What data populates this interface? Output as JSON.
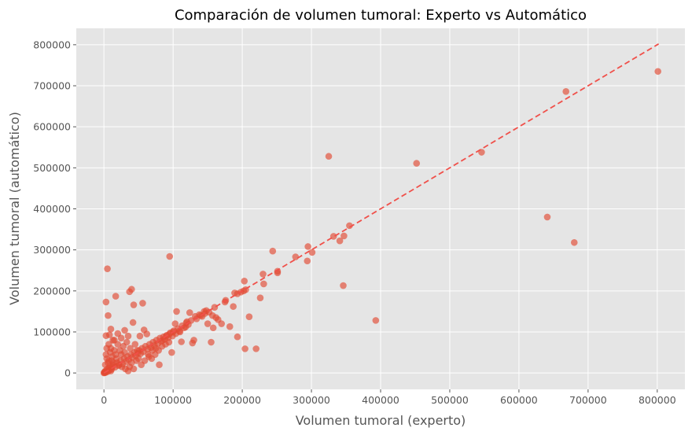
{
  "chart_data": {
    "type": "scatter",
    "title": "Comparación de volumen tumoral: Experto vs Automático",
    "xlabel": "Volumen tumoral (experto)",
    "ylabel": "Volumen tumoral (automático)",
    "xlim": [
      -40000,
      840000
    ],
    "ylim": [
      -40000,
      840000
    ],
    "x_ticks": [
      0,
      100000,
      200000,
      300000,
      400000,
      500000,
      600000,
      700000,
      800000
    ],
    "y_ticks": [
      0,
      100000,
      200000,
      300000,
      400000,
      500000,
      600000,
      700000,
      800000
    ],
    "x_tick_labels": [
      "0",
      "100000",
      "200000",
      "300000",
      "400000",
      "500000",
      "600000",
      "700000",
      "800000"
    ],
    "y_tick_labels": [
      "0",
      "100000",
      "200000",
      "300000",
      "400000",
      "500000",
      "600000",
      "700000",
      "800000"
    ],
    "grid": true,
    "style": "ggplot",
    "colors": {
      "points": "#e24a33",
      "reference_line": "#f0504a",
      "background": "#e5e5e5",
      "grid": "#ffffff"
    },
    "reference_line": {
      "from": [
        0,
        0
      ],
      "to": [
        802000,
        802000
      ],
      "style": "dashed"
    },
    "series": [
      {
        "points": [
          [
            801000,
            735000
          ],
          [
            668000,
            686000
          ],
          [
            546000,
            538000
          ],
          [
            452000,
            511000
          ],
          [
            325000,
            528000
          ],
          [
            641000,
            380000
          ],
          [
            680000,
            318000
          ],
          [
            393000,
            128000
          ],
          [
            355000,
            359000
          ],
          [
            347000,
            334000
          ],
          [
            332000,
            333000
          ],
          [
            341000,
            322000
          ],
          [
            346000,
            213000
          ],
          [
            295000,
            308000
          ],
          [
            301000,
            294000
          ],
          [
            294000,
            273000
          ],
          [
            277000,
            283000
          ],
          [
            244000,
            297000
          ],
          [
            251000,
            248000
          ],
          [
            251000,
            244000
          ],
          [
            230000,
            241000
          ],
          [
            231000,
            217000
          ],
          [
            226000,
            183000
          ],
          [
            210000,
            137000
          ],
          [
            205000,
            203000
          ],
          [
            202000,
            200000
          ],
          [
            203000,
            224000
          ],
          [
            198000,
            197000
          ],
          [
            193000,
            193000
          ],
          [
            189000,
            195000
          ],
          [
            187000,
            162000
          ],
          [
            176000,
            177000
          ],
          [
            175000,
            173000
          ],
          [
            182000,
            113000
          ],
          [
            193000,
            88000
          ],
          [
            204000,
            59000
          ],
          [
            220000,
            59000
          ],
          [
            95000,
            284000
          ],
          [
            5000,
            254000
          ],
          [
            3000,
            173000
          ],
          [
            17000,
            187000
          ],
          [
            37000,
            198000
          ],
          [
            40000,
            204000
          ],
          [
            43000,
            166000
          ],
          [
            56000,
            170000
          ],
          [
            6000,
            140000
          ],
          [
            42000,
            123000
          ],
          [
            10000,
            107000
          ],
          [
            20000,
            96000
          ],
          [
            3000,
            91000
          ],
          [
            8000,
            93000
          ],
          [
            15000,
            80000
          ],
          [
            30000,
            104000
          ],
          [
            35000,
            90000
          ],
          [
            48000,
            55000
          ],
          [
            65000,
            40000
          ],
          [
            70000,
            55000
          ],
          [
            62000,
            95000
          ],
          [
            75000,
            60000
          ],
          [
            85000,
            80000
          ],
          [
            90000,
            90000
          ],
          [
            95000,
            95000
          ],
          [
            100000,
            100000
          ],
          [
            103000,
            120000
          ],
          [
            105000,
            150000
          ],
          [
            110000,
            100000
          ],
          [
            112000,
            76000
          ],
          [
            120000,
            125000
          ],
          [
            124000,
            147000
          ],
          [
            130000,
            80000
          ],
          [
            128000,
            73000
          ],
          [
            132000,
            138000
          ],
          [
            140000,
            140000
          ],
          [
            145000,
            150000
          ],
          [
            150000,
            120000
          ],
          [
            155000,
            75000
          ],
          [
            160000,
            160000
          ],
          [
            165000,
            130000
          ],
          [
            170000,
            120000
          ],
          [
            158000,
            110000
          ],
          [
            118000,
            112000
          ],
          [
            98000,
            50000
          ],
          [
            80000,
            20000
          ],
          [
            58000,
            105000
          ],
          [
            52000,
            90000
          ],
          [
            45000,
            70000
          ],
          [
            38000,
            60000
          ],
          [
            30000,
            50000
          ],
          [
            25000,
            45000
          ],
          [
            22000,
            20000
          ],
          [
            18000,
            35000
          ],
          [
            14000,
            25000
          ],
          [
            12000,
            15000
          ],
          [
            9000,
            8000
          ],
          [
            7000,
            30000
          ],
          [
            5000,
            10000
          ],
          [
            4000,
            60000
          ],
          [
            3000,
            45000
          ],
          [
            2000,
            5000
          ],
          [
            1000,
            2000
          ],
          [
            0,
            0
          ],
          [
            500,
            1000
          ],
          [
            1500,
            500
          ],
          [
            2500,
            3500
          ],
          [
            3500,
            2000
          ],
          [
            6000,
            4000
          ],
          [
            8000,
            12000
          ],
          [
            11000,
            9000
          ],
          [
            13000,
            20000
          ],
          [
            16000,
            14000
          ],
          [
            19000,
            25000
          ],
          [
            21000,
            18000
          ],
          [
            24000,
            30000
          ],
          [
            27000,
            22000
          ],
          [
            29000,
            35000
          ],
          [
            32000,
            28000
          ],
          [
            34000,
            40000
          ],
          [
            36000,
            32000
          ],
          [
            39000,
            45000
          ],
          [
            41000,
            38000
          ],
          [
            44000,
            50000
          ],
          [
            46000,
            42000
          ],
          [
            49000,
            48000
          ],
          [
            51000,
            55000
          ],
          [
            53000,
            47000
          ],
          [
            55000,
            60000
          ],
          [
            57000,
            52000
          ],
          [
            60000,
            65000
          ],
          [
            63000,
            58000
          ],
          [
            66000,
            70000
          ],
          [
            68000,
            62000
          ],
          [
            71000,
            75000
          ],
          [
            73000,
            67000
          ],
          [
            76000,
            80000
          ],
          [
            78000,
            72000
          ],
          [
            81000,
            85000
          ],
          [
            83000,
            77000
          ],
          [
            86000,
            88000
          ],
          [
            88000,
            82000
          ],
          [
            91000,
            92000
          ],
          [
            93000,
            86000
          ],
          [
            96000,
            98000
          ],
          [
            99000,
            90000
          ],
          [
            101000,
            103000
          ],
          [
            104000,
            96000
          ],
          [
            107000,
            108000
          ],
          [
            109000,
            102000
          ],
          [
            113000,
            115000
          ],
          [
            116000,
            110000
          ],
          [
            119000,
            122000
          ],
          [
            122000,
            118000
          ],
          [
            126000,
            128000
          ],
          [
            134000,
            132000
          ],
          [
            138000,
            142000
          ],
          [
            142000,
            138000
          ],
          [
            146000,
            145000
          ],
          [
            148000,
            152000
          ],
          [
            152000,
            148000
          ],
          [
            157000,
            140000
          ],
          [
            162000,
            135000
          ],
          [
            10000,
            60000
          ],
          [
            12000,
            40000
          ],
          [
            15000,
            55000
          ],
          [
            20000,
            70000
          ],
          [
            25000,
            85000
          ],
          [
            28000,
            65000
          ],
          [
            33000,
            75000
          ],
          [
            37000,
            15000
          ],
          [
            40000,
            25000
          ],
          [
            47000,
            30000
          ],
          [
            50000,
            35000
          ],
          [
            54000,
            20000
          ],
          [
            59000,
            30000
          ],
          [
            64000,
            45000
          ],
          [
            69000,
            35000
          ],
          [
            74000,
            45000
          ],
          [
            79000,
            55000
          ],
          [
            84000,
            65000
          ],
          [
            89000,
            70000
          ],
          [
            94000,
            75000
          ],
          [
            7000,
            70000
          ],
          [
            9000,
            50000
          ],
          [
            11000,
            30000
          ],
          [
            13000,
            80000
          ],
          [
            17000,
            45000
          ],
          [
            23000,
            55000
          ],
          [
            26000,
            15000
          ],
          [
            31000,
            10000
          ],
          [
            35000,
            5000
          ],
          [
            43000,
            10000
          ],
          [
            2000,
            20000
          ],
          [
            4000,
            35000
          ],
          [
            6000,
            25000
          ],
          [
            8000,
            15000
          ],
          [
            10000,
            5000
          ]
        ]
      }
    ]
  }
}
